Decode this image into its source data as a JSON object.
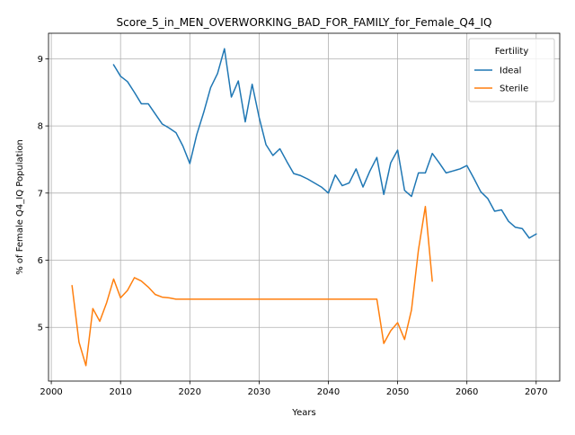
{
  "chart_data": {
    "type": "line",
    "title": "Score_5_in_MEN_OVERWORKING_BAD_FOR_FAMILY_for_Female_Q4_IQ",
    "xlabel": "Years",
    "ylabel": "% of Female Q4_IQ Population",
    "xlim": [
      1999.6,
      2073.4
    ],
    "ylim": [
      4.2,
      9.38
    ],
    "xticks": [
      2000,
      2010,
      2020,
      2030,
      2040,
      2050,
      2060,
      2070
    ],
    "yticks": [
      5,
      6,
      7,
      8,
      9
    ],
    "grid": true,
    "legend": {
      "title": "Fertility",
      "placement": "top-right"
    },
    "series": [
      {
        "name": "Ideal",
        "color": "#1f77b4",
        "x": [
          2009,
          2010,
          2011,
          2012,
          2013,
          2014,
          2015,
          2016,
          2017,
          2018,
          2019,
          2020,
          2021,
          2022,
          2023,
          2024,
          2025,
          2026,
          2027,
          2028,
          2029,
          2030,
          2031,
          2032,
          2033,
          2034,
          2035,
          2036,
          2037,
          2038,
          2039,
          2040,
          2041,
          2042,
          2043,
          2044,
          2045,
          2046,
          2047,
          2048,
          2049,
          2050,
          2051,
          2052,
          2053,
          2054,
          2055,
          2056,
          2057,
          2058,
          2059,
          2060,
          2061,
          2062,
          2063,
          2064,
          2065,
          2066,
          2067,
          2068,
          2069,
          2070
        ],
        "y": [
          8.91,
          8.74,
          8.66,
          8.5,
          8.33,
          8.33,
          8.18,
          8.03,
          7.97,
          7.9,
          7.7,
          7.44,
          7.87,
          8.2,
          8.57,
          8.78,
          9.15,
          8.43,
          8.67,
          8.06,
          8.62,
          8.13,
          7.72,
          7.56,
          7.66,
          7.47,
          7.29,
          7.26,
          7.21,
          7.15,
          7.09,
          7.0,
          7.27,
          7.11,
          7.15,
          7.36,
          7.09,
          7.33,
          7.53,
          6.98,
          7.45,
          7.64,
          7.04,
          6.95,
          7.3,
          7.3,
          7.59,
          7.45,
          7.3,
          7.33,
          7.36,
          7.41,
          7.22,
          7.02,
          6.92,
          6.73,
          6.75,
          6.58,
          6.49,
          6.47,
          6.33,
          6.39
        ]
      },
      {
        "name": "Sterile",
        "color": "#ff7f0e",
        "x": [
          2003,
          2004,
          2005,
          2006,
          2007,
          2008,
          2009,
          2010,
          2011,
          2012,
          2013,
          2014,
          2015,
          2016,
          2017,
          2018,
          2019,
          2020,
          2021,
          2022,
          2023,
          2024,
          2025,
          2026,
          2027,
          2028,
          2029,
          2030,
          2031,
          2032,
          2033,
          2034,
          2035,
          2036,
          2037,
          2038,
          2039,
          2040,
          2041,
          2042,
          2043,
          2044,
          2045,
          2046,
          2047,
          2048,
          2049,
          2050,
          2051,
          2052,
          2053,
          2054,
          2055
        ],
        "y": [
          5.62,
          4.78,
          4.43,
          5.28,
          5.09,
          5.37,
          5.72,
          5.44,
          5.55,
          5.74,
          5.69,
          5.6,
          5.49,
          5.45,
          5.44,
          5.42,
          5.42,
          5.42,
          5.42,
          5.42,
          5.42,
          5.42,
          5.42,
          5.42,
          5.42,
          5.42,
          5.42,
          5.42,
          5.42,
          5.42,
          5.42,
          5.42,
          5.42,
          5.42,
          5.42,
          5.42,
          5.42,
          5.42,
          5.42,
          5.42,
          5.42,
          5.42,
          5.42,
          5.42,
          5.42,
          4.76,
          4.95,
          5.07,
          4.82,
          5.26,
          6.15,
          6.8,
          5.69
        ]
      }
    ]
  }
}
